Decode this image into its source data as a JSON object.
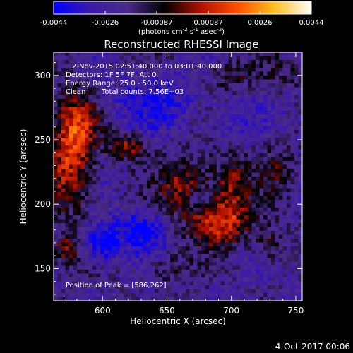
{
  "chart_data": {
    "type": "heatmap",
    "title": "Reconstructed RHESSI Image",
    "xlabel": "Heliocentric X (arcsec)",
    "ylabel": "Heliocentric Y (arcsec)",
    "xlim": [
      562,
      755
    ],
    "ylim": [
      125,
      318
    ],
    "x_ticks": [
      600,
      650,
      700,
      750
    ],
    "y_ticks": [
      150,
      200,
      250,
      300
    ],
    "colorbar": {
      "vmin": -0.0044,
      "vmax": 0.0044,
      "ticks": [
        "-0.0044",
        "-0.0026",
        "-0.00087",
        "0.00087",
        "0.0026",
        "0.0044"
      ],
      "label": "(photons cm",
      "colors": [
        "#0000ff",
        "#3a1aa6",
        "#4a2a8a",
        "#000000",
        "#b01000",
        "#ff5000",
        "#ffc020",
        "#ffffff"
      ]
    },
    "peak": [
      586,
      262
    ],
    "blobs": [
      {
        "x": 575,
        "y": 240,
        "sx": 12,
        "sy": 32,
        "a": 0.0034
      },
      {
        "x": 586,
        "y": 262,
        "sx": 10,
        "sy": 14,
        "a": 0.0012
      },
      {
        "x": 620,
        "y": 245,
        "sx": 10,
        "sy": 7,
        "a": 0.0026
      },
      {
        "x": 665,
        "y": 215,
        "sx": 15,
        "sy": 15,
        "a": 0.0024
      },
      {
        "x": 700,
        "y": 215,
        "sx": 10,
        "sy": 20,
        "a": 0.0022
      },
      {
        "x": 690,
        "y": 185,
        "sx": 18,
        "sy": 12,
        "a": 0.0028
      },
      {
        "x": 675,
        "y": 205,
        "sx": 6,
        "sy": 6,
        "a": -0.0016
      },
      {
        "x": 570,
        "y": 165,
        "sx": 8,
        "sy": 8,
        "a": 0.002
      },
      {
        "x": 730,
        "y": 170,
        "sx": 8,
        "sy": 10,
        "a": 0.0016
      },
      {
        "x": 735,
        "y": 230,
        "sx": 10,
        "sy": 15,
        "a": 0.0012
      },
      {
        "x": 700,
        "y": 300,
        "sx": 14,
        "sy": 8,
        "a": 0.0014
      },
      {
        "x": 650,
        "y": 150,
        "sx": 10,
        "sy": 8,
        "a": 0.0012
      },
      {
        "x": 740,
        "y": 300,
        "sx": 10,
        "sy": 10,
        "a": 0.001
      },
      {
        "x": 630,
        "y": 180,
        "sx": 12,
        "sy": 10,
        "a": -0.0024
      },
      {
        "x": 600,
        "y": 170,
        "sx": 10,
        "sy": 10,
        "a": -0.003
      },
      {
        "x": 640,
        "y": 280,
        "sx": 25,
        "sy": 15,
        "a": -0.0014
      },
      {
        "x": 700,
        "y": 260,
        "sx": 15,
        "sy": 15,
        "a": -0.0008
      }
    ]
  },
  "colorbar_label": {
    "prefix": "(photons cm",
    "sup1": "-2",
    "mid1": " s",
    "sup2": "-1",
    "mid2": " asec",
    "sup3": "-2",
    "suffix": ")"
  },
  "annotations": {
    "time_range": "2-Nov-2015 02:51:40.000 to 03:01:40.000",
    "detectors": "Detectors: 1F 5F 7F, Att 0",
    "energy_range": "Energy Range: 25.0 - 50.0 keV",
    "clean": "Clean",
    "total_counts": "Total counts: 7.56E+03",
    "peak_position": "Position of Peak = [586,262]"
  },
  "footer": {
    "timestamp": "4-Oct-2017 00:06"
  }
}
